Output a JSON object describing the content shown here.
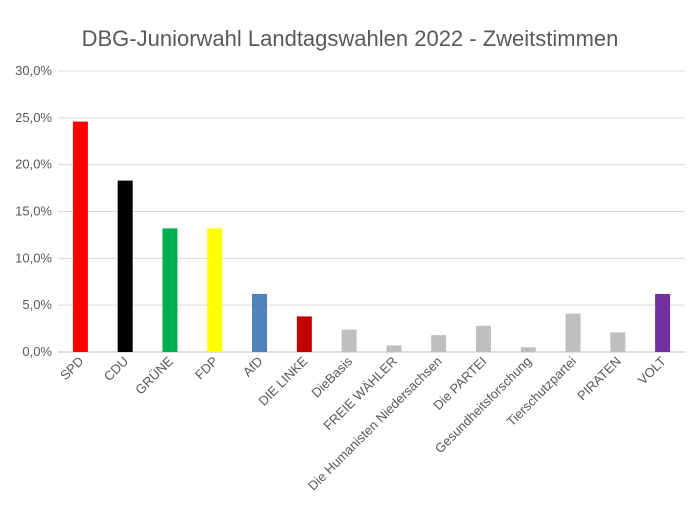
{
  "chart_data": {
    "type": "bar",
    "title": "DBG-Juniorwahl Landtagswahlen 2022 - Zweitstimmen",
    "xlabel": "",
    "ylabel": "",
    "ylim": [
      0,
      30
    ],
    "yticks": [
      "0,0%",
      "5,0%",
      "10,0%",
      "15,0%",
      "20,0%",
      "25,0%",
      "30,0%"
    ],
    "grid": true,
    "legend": "none",
    "categories": [
      "SPD",
      "CDU",
      "GRÜNE",
      "FDP",
      "AfD",
      "DIE LINKE",
      "DieBasis",
      "FREIE WÄHLER",
      "Die Humanisten Niedersachsen",
      "Die PARTEI",
      "Gesundheitsforschung",
      "Tierschutzpartei",
      "PIRATEN",
      "VOLT"
    ],
    "values": [
      24.6,
      18.3,
      13.2,
      13.2,
      6.2,
      3.8,
      2.4,
      0.7,
      1.8,
      2.8,
      0.5,
      4.1,
      2.1,
      6.2
    ],
    "colors": [
      "#ff0000",
      "#000000",
      "#00b050",
      "#ffff00",
      "#4f81bd",
      "#c00000",
      "#bfbfbf",
      "#bfbfbf",
      "#bfbfbf",
      "#bfbfbf",
      "#bfbfbf",
      "#bfbfbf",
      "#bfbfbf",
      "#7030a0"
    ]
  }
}
